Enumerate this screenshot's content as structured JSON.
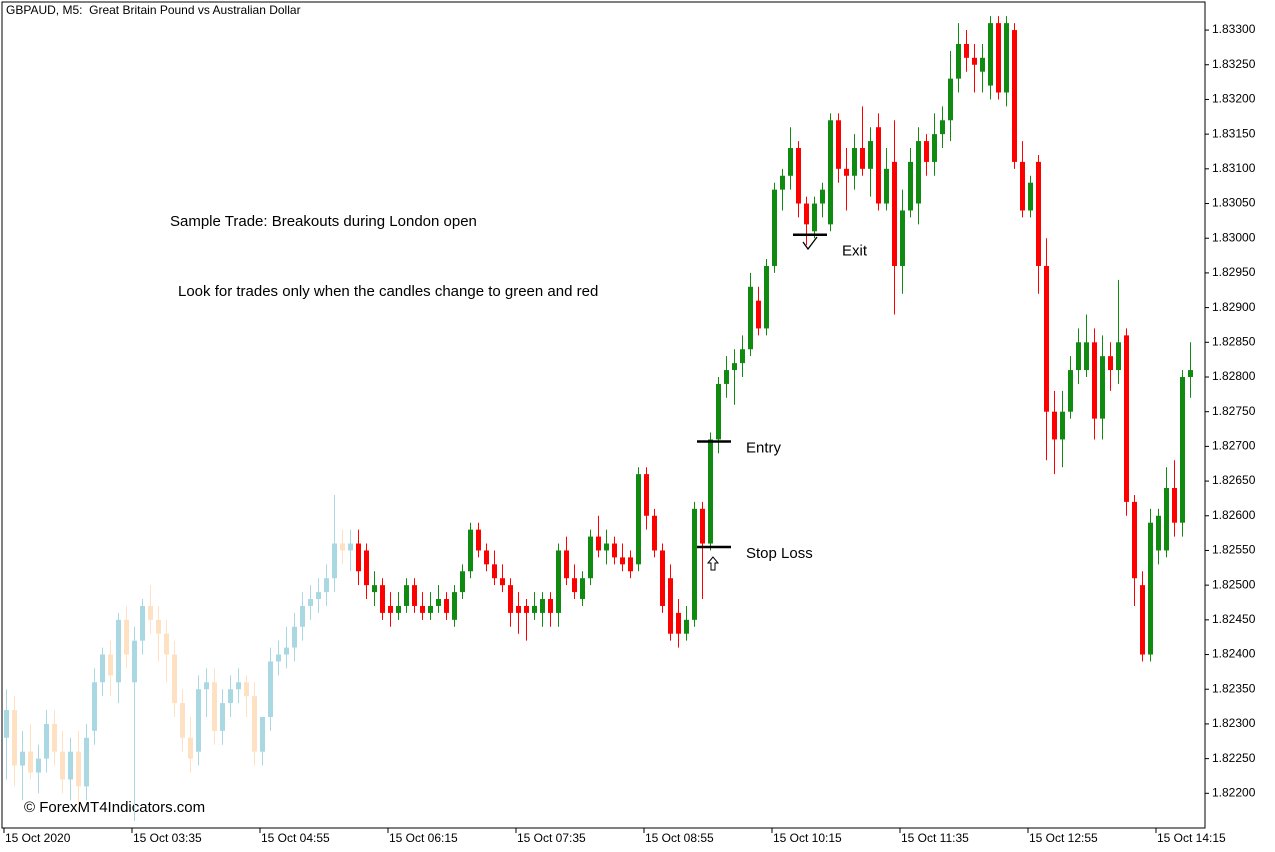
{
  "chart_data": {
    "type": "candlestick",
    "title": "GBPAUD, M5:  Great Britain Pound vs Australian Dollar",
    "annotations": [
      "Sample Trade: Breakouts during London open",
      "Look for trades only when the candles change to green and red"
    ],
    "watermark": "© ForexMT4Indicators.com",
    "levels": [
      {
        "label": "Entry",
        "value": 1.82707
      },
      {
        "label": "Stop Loss",
        "value": 1.82555
      },
      {
        "label": "Exit",
        "value": 1.83005
      }
    ],
    "ylim": [
      1.8215,
      1.83339
    ],
    "yticks": [
      {
        "value": 1.822,
        "label": "1.82200"
      },
      {
        "value": 1.8225,
        "label": "1.82250"
      },
      {
        "value": 1.823,
        "label": "1.82300"
      },
      {
        "value": 1.8235,
        "label": "1.82350"
      },
      {
        "value": 1.824,
        "label": "1.82400"
      },
      {
        "value": 1.8245,
        "label": "1.82450"
      },
      {
        "value": 1.825,
        "label": "1.82500"
      },
      {
        "value": 1.8255,
        "label": "1.82550"
      },
      {
        "value": 1.826,
        "label": "1.82600"
      },
      {
        "value": 1.8265,
        "label": "1.82650"
      },
      {
        "value": 1.827,
        "label": "1.82700"
      },
      {
        "value": 1.8275,
        "label": "1.82750"
      },
      {
        "value": 1.828,
        "label": "1.82800"
      },
      {
        "value": 1.8285,
        "label": "1.82850"
      },
      {
        "value": 1.829,
        "label": "1.82900"
      },
      {
        "value": 1.8295,
        "label": "1.82950"
      },
      {
        "value": 1.83,
        "label": "1.83000"
      },
      {
        "value": 1.8305,
        "label": "1.83050"
      },
      {
        "value": 1.831,
        "label": "1.83100"
      },
      {
        "value": 1.8315,
        "label": "1.83150"
      },
      {
        "value": 1.832,
        "label": "1.83200"
      },
      {
        "value": 1.8325,
        "label": "1.83250"
      },
      {
        "value": 1.833,
        "label": "1.83300"
      }
    ],
    "categories": [
      "15 Oct 2020",
      null,
      null,
      null,
      null,
      null,
      null,
      null,
      null,
      null,
      null,
      null,
      null,
      null,
      null,
      null,
      "15 Oct 03:35",
      null,
      null,
      null,
      null,
      null,
      null,
      null,
      null,
      null,
      null,
      null,
      null,
      null,
      null,
      null,
      "15 Oct 04:55",
      null,
      null,
      null,
      null,
      null,
      null,
      null,
      null,
      null,
      null,
      null,
      null,
      null,
      null,
      null,
      "15 Oct 06:15",
      null,
      null,
      null,
      null,
      null,
      null,
      null,
      null,
      null,
      null,
      null,
      null,
      null,
      null,
      null,
      "15 Oct 07:35",
      null,
      null,
      null,
      null,
      null,
      null,
      null,
      null,
      null,
      null,
      null,
      null,
      null,
      null,
      null,
      "15 Oct 08:55",
      null,
      null,
      null,
      null,
      null,
      null,
      null,
      null,
      null,
      null,
      null,
      null,
      null,
      null,
      null,
      "15 Oct 10:15",
      null,
      null,
      null,
      null,
      null,
      null,
      null,
      null,
      null,
      null,
      null,
      null,
      null,
      null,
      null,
      "15 Oct 11:35",
      null,
      null,
      null,
      null,
      null,
      null,
      null,
      null,
      null,
      null,
      null,
      null,
      null,
      null,
      null,
      "15 Oct 12:55",
      null,
      null,
      null,
      null,
      null,
      null,
      null,
      null,
      null,
      null,
      null,
      null,
      null,
      null,
      null,
      "15 Oct 14:15",
      null,
      null,
      null,
      null
    ],
    "series": [
      {
        "up_color": "#a9d8e3",
        "down_color": "#fde1c2",
        "candles": [
          [
            1.8228,
            1.8235,
            1.8222,
            1.8232
          ],
          [
            1.8232,
            1.8234,
            1.8221,
            1.8224
          ],
          [
            1.8224,
            1.8229,
            1.8219,
            1.8226
          ],
          [
            1.8226,
            1.823,
            1.8222,
            1.8223
          ],
          [
            1.8223,
            1.8227,
            1.822,
            1.8225
          ],
          [
            1.8225,
            1.8232,
            1.8223,
            1.823
          ],
          [
            1.823,
            1.8232,
            1.8224,
            1.8226
          ],
          [
            1.8226,
            1.8229,
            1.822,
            1.8222
          ],
          [
            1.8222,
            1.8228,
            1.8219,
            1.8226
          ],
          [
            1.8226,
            1.8229,
            1.8218,
            1.8221
          ],
          [
            1.8221,
            1.823,
            1.8219,
            1.8228
          ],
          [
            1.8229,
            1.8238,
            1.8227,
            1.8236
          ],
          [
            1.8236,
            1.8241,
            1.8234,
            1.824
          ],
          [
            1.824,
            1.8242,
            1.8234,
            1.8237
          ],
          [
            1.8236,
            1.8246,
            1.8233,
            1.8245
          ],
          [
            1.8245,
            1.8247,
            1.8238,
            1.824
          ],
          [
            1.8236,
            1.8244,
            1.8216,
            1.8242
          ],
          [
            1.8242,
            1.8248,
            1.824,
            1.8247
          ],
          [
            1.8247,
            1.825,
            1.8243,
            1.8245
          ],
          [
            1.8245,
            1.8247,
            1.8239,
            1.8243
          ],
          [
            1.8243,
            1.8245,
            1.8236,
            1.824
          ],
          [
            1.824,
            1.8242,
            1.8231,
            1.8233
          ],
          [
            1.8233,
            1.8235,
            1.8226,
            1.8228
          ],
          [
            1.8228,
            1.8231,
            1.8223,
            1.8225
          ],
          [
            1.8226,
            1.8237,
            1.8224,
            1.8235
          ],
          [
            1.8235,
            1.8238,
            1.8231,
            1.8236
          ],
          [
            1.8236,
            1.8238,
            1.8227,
            1.8229
          ],
          [
            1.8229,
            1.8235,
            1.8227,
            1.8233
          ],
          [
            1.8233,
            1.8237,
            1.8231,
            1.8235
          ],
          [
            1.8235,
            1.8238,
            1.8233,
            1.8236
          ],
          [
            1.8236,
            1.8237,
            1.8231,
            1.8234
          ],
          [
            1.8234,
            1.8236,
            1.8224,
            1.8226
          ],
          [
            1.8226,
            1.8231,
            1.8224,
            1.8231
          ],
          [
            1.8231,
            1.8241,
            1.8229,
            1.8239
          ],
          [
            1.8239,
            1.8242,
            1.8237,
            1.824
          ],
          [
            1.824,
            1.8244,
            1.8238,
            1.8241
          ],
          [
            1.8241,
            1.8246,
            1.8239,
            1.8244
          ],
          [
            1.8244,
            1.8249,
            1.8242,
            1.8247
          ],
          [
            1.8247,
            1.825,
            1.8245,
            1.8248
          ],
          [
            1.8248,
            1.8251,
            1.8246,
            1.8249
          ],
          [
            1.8249,
            1.8253,
            1.8247,
            1.8251
          ],
          [
            1.8251,
            1.8263,
            1.8249,
            1.8256
          ],
          [
            1.8256,
            1.8258,
            1.8253,
            1.8255
          ],
          [
            1.8255,
            1.8258,
            1.8252,
            1.8256
          ]
        ]
      },
      {
        "up_color": "#118a11",
        "down_color": "#ff0000",
        "candles": [
          [
            1.8256,
            1.8258,
            1.825,
            1.8252
          ],
          [
            1.8255,
            1.8256,
            1.8248,
            1.825
          ],
          [
            1.8249,
            1.8252,
            1.8247,
            1.825
          ],
          [
            1.825,
            1.8251,
            1.8245,
            1.8246
          ],
          [
            1.8247,
            1.8249,
            1.8244,
            1.8246
          ],
          [
            1.8246,
            1.8249,
            1.8245,
            1.8247
          ],
          [
            1.8247,
            1.8251,
            1.8246,
            1.825
          ],
          [
            1.825,
            1.8251,
            1.8246,
            1.8247
          ],
          [
            1.8247,
            1.8249,
            1.8245,
            1.8246
          ],
          [
            1.8246,
            1.8249,
            1.8245,
            1.8247
          ],
          [
            1.8247,
            1.825,
            1.8246,
            1.8248
          ],
          [
            1.8248,
            1.8249,
            1.8245,
            1.8246
          ],
          [
            1.8245,
            1.825,
            1.8244,
            1.8249
          ],
          [
            1.8249,
            1.8253,
            1.8248,
            1.8252
          ],
          [
            1.8252,
            1.8259,
            1.8251,
            1.8258
          ],
          [
            1.8258,
            1.8259,
            1.8254,
            1.8255
          ],
          [
            1.8255,
            1.8256,
            1.8252,
            1.8253
          ],
          [
            1.8253,
            1.8255,
            1.825,
            1.8251
          ],
          [
            1.8251,
            1.8253,
            1.8249,
            1.825
          ],
          [
            1.825,
            1.8251,
            1.8244,
            1.8246
          ],
          [
            1.8247,
            1.8249,
            1.8243,
            1.8246
          ],
          [
            1.8247,
            1.8248,
            1.8242,
            1.8246
          ],
          [
            1.8246,
            1.8249,
            1.8245,
            1.8247
          ],
          [
            1.8246,
            1.8249,
            1.8244,
            1.8248
          ],
          [
            1.8248,
            1.8249,
            1.8244,
            1.8246
          ],
          [
            1.8246,
            1.8256,
            1.8244,
            1.8255
          ],
          [
            1.8255,
            1.8257,
            1.825,
            1.8251
          ],
          [
            1.8251,
            1.8253,
            1.8248,
            1.8249
          ],
          [
            1.8248,
            1.8252,
            1.8247,
            1.8251
          ],
          [
            1.8251,
            1.8258,
            1.825,
            1.8257
          ],
          [
            1.8257,
            1.826,
            1.8254,
            1.8255
          ],
          [
            1.8255,
            1.8258,
            1.8253,
            1.8256
          ],
          [
            1.8256,
            1.8257,
            1.8253,
            1.8254
          ],
          [
            1.8254,
            1.8256,
            1.8252,
            1.8253
          ],
          [
            1.8254,
            1.8255,
            1.8251,
            1.8252
          ],
          [
            1.8253,
            1.8267,
            1.8252,
            1.8266
          ],
          [
            1.8266,
            1.8267,
            1.8258,
            1.826
          ],
          [
            1.826,
            1.8261,
            1.8254,
            1.8255
          ],
          [
            1.8255,
            1.8256,
            1.8246,
            1.8247
          ],
          [
            1.8251,
            1.8253,
            1.8242,
            1.8243
          ],
          [
            1.8246,
            1.8248,
            1.8241,
            1.8243
          ],
          [
            1.8243,
            1.8247,
            1.8242,
            1.8245
          ],
          [
            1.8245,
            1.8262,
            1.8244,
            1.8261
          ],
          [
            1.8261,
            1.8262,
            1.8248,
            1.8256
          ],
          [
            1.8256,
            1.8272,
            1.8255,
            1.8271
          ],
          [
            1.8271,
            1.828,
            1.8269,
            1.8279
          ],
          [
            1.8279,
            1.8283,
            1.8277,
            1.8281
          ],
          [
            1.8281,
            1.8284,
            1.8276,
            1.8282
          ],
          [
            1.8282,
            1.8286,
            1.828,
            1.8284
          ],
          [
            1.8284,
            1.8295,
            1.8283,
            1.8293
          ],
          [
            1.8291,
            1.8293,
            1.8286,
            1.8287
          ],
          [
            1.8287,
            1.8297,
            1.8286,
            1.8296
          ],
          [
            1.8296,
            1.8308,
            1.8295,
            1.8307
          ],
          [
            1.8307,
            1.831,
            1.8304,
            1.8309
          ],
          [
            1.8309,
            1.8316,
            1.8307,
            1.8313
          ],
          [
            1.8313,
            1.8314,
            1.8303,
            1.8305
          ],
          [
            1.8305,
            1.8306,
            1.8299,
            1.8302
          ],
          [
            1.8301,
            1.8306,
            1.83,
            1.8305
          ],
          [
            1.8305,
            1.8308,
            1.8303,
            1.8307
          ],
          [
            1.8302,
            1.8318,
            1.8301,
            1.8317
          ],
          [
            1.8317,
            1.8318,
            1.8308,
            1.831
          ],
          [
            1.831,
            1.8313,
            1.8304,
            1.8309
          ],
          [
            1.8309,
            1.8315,
            1.8307,
            1.8313
          ],
          [
            1.8313,
            1.8319,
            1.8309,
            1.831
          ],
          [
            1.831,
            1.8316,
            1.8306,
            1.8314
          ],
          [
            1.8316,
            1.8318,
            1.8304,
            1.8305
          ],
          [
            1.8305,
            1.8313,
            1.8304,
            1.831
          ],
          [
            1.8311,
            1.8317,
            1.8289,
            1.8296
          ],
          [
            1.8296,
            1.8307,
            1.8292,
            1.8304
          ],
          [
            1.8304,
            1.8313,
            1.8303,
            1.8311
          ],
          [
            1.8305,
            1.8316,
            1.8302,
            1.8314
          ],
          [
            1.8314,
            1.8315,
            1.8309,
            1.8311
          ],
          [
            1.8311,
            1.8318,
            1.8309,
            1.8315
          ],
          [
            1.8315,
            1.8319,
            1.8313,
            1.8317
          ],
          [
            1.8317,
            1.8327,
            1.8314,
            1.8323
          ],
          [
            1.8323,
            1.8331,
            1.8321,
            1.8328
          ],
          [
            1.8328,
            1.833,
            1.8324,
            1.8326
          ],
          [
            1.8326,
            1.8328,
            1.8321,
            1.8325
          ],
          [
            1.8324,
            1.8328,
            1.8321,
            1.8326
          ],
          [
            1.8322,
            1.8332,
            1.832,
            1.8331
          ],
          [
            1.8331,
            1.8332,
            1.832,
            1.8321
          ],
          [
            1.8321,
            1.8332,
            1.8319,
            1.8331
          ],
          [
            1.833,
            1.8331,
            1.831,
            1.8311
          ],
          [
            1.8311,
            1.8314,
            1.8303,
            1.8304
          ],
          [
            1.8304,
            1.8309,
            1.8303,
            1.8308
          ],
          [
            1.8311,
            1.8312,
            1.8292,
            1.8296
          ],
          [
            1.8296,
            1.83,
            1.8268,
            1.8275
          ],
          [
            1.8275,
            1.8278,
            1.8266,
            1.8271
          ],
          [
            1.8271,
            1.8278,
            1.8267,
            1.8275
          ],
          [
            1.8275,
            1.8283,
            1.8274,
            1.8281
          ],
          [
            1.8281,
            1.8287,
            1.8279,
            1.8285
          ],
          [
            1.8281,
            1.8289,
            1.828,
            1.8285
          ],
          [
            1.8285,
            1.8287,
            1.8271,
            1.8274
          ],
          [
            1.8274,
            1.8286,
            1.8271,
            1.8283
          ],
          [
            1.8283,
            1.8285,
            1.8278,
            1.8281
          ],
          [
            1.8281,
            1.8294,
            1.8279,
            1.8285
          ],
          [
            1.8286,
            1.8287,
            1.826,
            1.8262
          ],
          [
            1.8262,
            1.8263,
            1.8247,
            1.8251
          ],
          [
            1.825,
            1.8252,
            1.8239,
            1.824
          ],
          [
            1.824,
            1.8261,
            1.8239,
            1.8259
          ],
          [
            1.8255,
            1.8261,
            1.8253,
            1.826
          ],
          [
            1.8255,
            1.8267,
            1.8254,
            1.8264
          ],
          [
            1.8264,
            1.8268,
            1.8257,
            1.8259
          ],
          [
            1.8259,
            1.8281,
            1.8257,
            1.828
          ],
          [
            1.828,
            1.8285,
            1.8277,
            1.8281
          ]
        ]
      }
    ]
  }
}
